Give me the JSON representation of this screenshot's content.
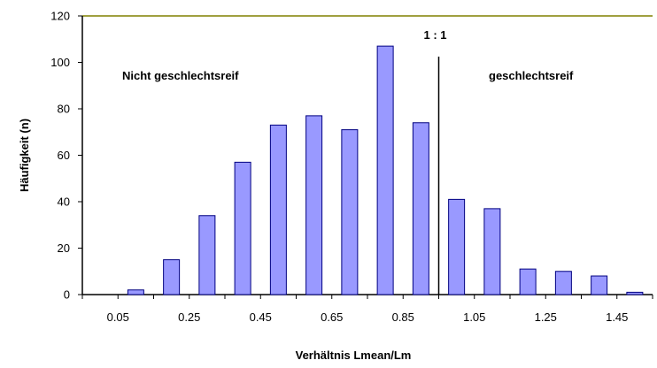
{
  "chart_data": {
    "type": "bar",
    "title": "",
    "xlabel": "Verhältnis Lmean/Lm",
    "ylabel": "Häufigkeit (n)",
    "ylim": [
      0,
      120
    ],
    "yticks": [
      "0",
      "20",
      "40",
      "60",
      "80",
      "100",
      "120"
    ],
    "xtick_labels": [
      "0.05",
      "0.25",
      "0.45",
      "0.65",
      "0.85",
      "1.05",
      "1.25",
      "1.45"
    ],
    "categories": [
      "0.05",
      "0.15",
      "0.25",
      "0.35",
      "0.45",
      "0.55",
      "0.65",
      "0.75",
      "0.85",
      "0.95",
      "1.05",
      "1.15",
      "1.25",
      "1.35",
      "1.45",
      "1.55"
    ],
    "values": [
      0,
      2,
      15,
      34,
      57,
      73,
      77,
      71,
      107,
      74,
      41,
      37,
      11,
      10,
      8,
      1
    ],
    "reference_line": {
      "x": 1.0,
      "label": "1 : 1"
    },
    "annotations": {
      "left": "Nicht geschlechtsreif",
      "right": "geschlechtsreif"
    },
    "colors": {
      "bar_fill": "#9999ff",
      "bar_stroke": "#000080",
      "top_border": "#808000",
      "axis": "#000000"
    },
    "grid": false,
    "legend": "none"
  }
}
